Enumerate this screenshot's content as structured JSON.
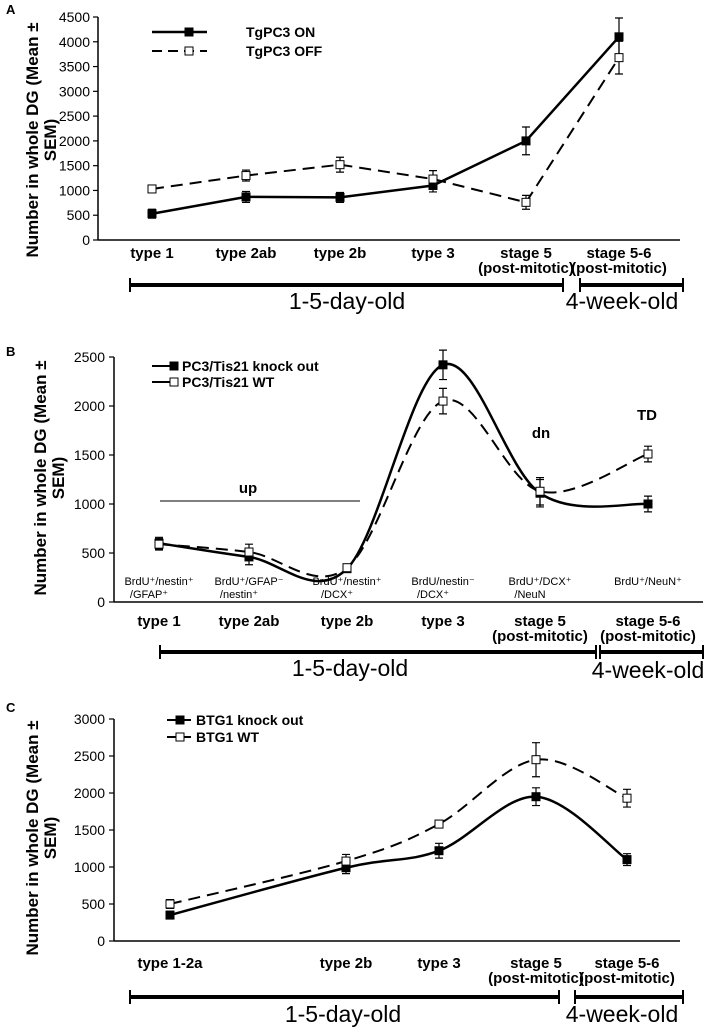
{
  "chart_data": [
    {
      "panel": "A",
      "type": "line",
      "title": "",
      "xlabel": "",
      "ylabel_line1": "Number in whole DG (Mean ±",
      "ylabel_line2": "SEM)",
      "ylim": [
        0,
        4500
      ],
      "yticks": [
        0,
        500,
        1000,
        1500,
        2000,
        2500,
        3000,
        3500,
        4000,
        4500
      ],
      "categories": [
        {
          "line1": "type 1",
          "line2": ""
        },
        {
          "line1": "type 2ab",
          "line2": ""
        },
        {
          "line1": "type 2b",
          "line2": ""
        },
        {
          "line1": "type 3",
          "line2": ""
        },
        {
          "line1": "stage 5",
          "line2": "(post-mitotic)"
        },
        {
          "line1": "stage 5-6",
          "line2": "(post-mitotic)"
        }
      ],
      "series": [
        {
          "name": "TgPC3 ON",
          "style": "solid",
          "marker": "filled",
          "values": [
            530,
            870,
            860,
            1100,
            2000,
            4100
          ],
          "errors": [
            90,
            110,
            100,
            130,
            280,
            380
          ]
        },
        {
          "name": "TgPC3 OFF",
          "style": "dashed",
          "marker": "open",
          "values": [
            1030,
            1300,
            1520,
            1230,
            760,
            3680
          ],
          "errors": [
            70,
            110,
            150,
            170,
            140,
            330
          ]
        }
      ],
      "legend": "top-left",
      "ages": [
        {
          "label": "1-5-day-old"
        },
        {
          "label": "4-week-old"
        }
      ],
      "annotations": []
    },
    {
      "panel": "B",
      "type": "line",
      "title": "",
      "xlabel": "",
      "ylabel_line1": "Number in whole DG (Mean ±",
      "ylabel_line2": "SEM)",
      "ylim": [
        0,
        2500
      ],
      "yticks": [
        0,
        500,
        1000,
        1500,
        2000,
        2500
      ],
      "categories": [
        {
          "line1": "type 1",
          "line2": ""
        },
        {
          "line1": "type 2ab",
          "line2": ""
        },
        {
          "line1": "type 2b",
          "line2": ""
        },
        {
          "line1": "type 3",
          "line2": ""
        },
        {
          "line1": "stage 5",
          "line2": "(post-mitotic)"
        },
        {
          "line1": "stage 5-6",
          "line2": "(post-mitotic)"
        }
      ],
      "series": [
        {
          "name": "PC3/Tis21 knock out",
          "style": "solid",
          "marker": "filled",
          "values": [
            600,
            460,
            340,
            2420,
            1110,
            1000
          ],
          "errors": [
            60,
            80,
            30,
            150,
            140,
            80
          ]
        },
        {
          "name": "PC3/Tis21 WT",
          "style": "dashed",
          "marker": "open",
          "values": [
            590,
            510,
            350,
            2050,
            1130,
            1510
          ],
          "errors": [
            60,
            80,
            30,
            130,
            140,
            80
          ]
        }
      ],
      "legend": "top-left",
      "ages": [
        {
          "label": "1-5-day-old"
        },
        {
          "label": "4-week-old"
        }
      ],
      "markers": [
        {
          "line1": "BrdU⁺/nestin⁺",
          "line2": "/GFAP⁺"
        },
        {
          "line1": "BrdU⁺/GFAP⁻",
          "line2": "/nestin⁺"
        },
        {
          "line1": "BrdU⁺/nestin⁺",
          "line2": "/DCX⁺"
        },
        {
          "line1": "BrdU/nestin⁻",
          "line2": "/DCX⁺"
        },
        {
          "line1": "BrdU⁺/DCX⁺",
          "line2": "/NeuN"
        },
        {
          "line1": "BrdU⁺/NeuN⁺",
          "line2": ""
        }
      ],
      "annotations": [
        {
          "text": "up",
          "at": "type 1 to type 2b"
        },
        {
          "text": "dn",
          "at": "stage 5"
        },
        {
          "text": "TD",
          "at": "stage 5-6"
        }
      ]
    },
    {
      "panel": "C",
      "type": "line",
      "title": "",
      "xlabel": "",
      "ylabel_line1": "Number in whole DG (Mean ±",
      "ylabel_line2": "SEM)",
      "ylim": [
        0,
        3000
      ],
      "yticks": [
        0,
        500,
        1000,
        1500,
        2000,
        2500,
        3000
      ],
      "categories": [
        {
          "line1": "type 1-2a",
          "line2": ""
        },
        {
          "line1": "type 2b",
          "line2": ""
        },
        {
          "line1": "type 3",
          "line2": ""
        },
        {
          "line1": "stage 5",
          "line2": "(post-mitotic)"
        },
        {
          "line1": "stage 5-6",
          "line2": "(post-mitotic)"
        }
      ],
      "series": [
        {
          "name": "BTG1 knock out",
          "style": "solid",
          "marker": "filled",
          "values": [
            350,
            990,
            1220,
            1950,
            1100
          ],
          "errors": [
            50,
            80,
            100,
            120,
            80
          ]
        },
        {
          "name": "BTG1 WT",
          "style": "dashed",
          "marker": "open",
          "values": [
            500,
            1080,
            1580,
            2450,
            1930
          ],
          "errors": [
            60,
            90,
            50,
            230,
            120
          ]
        }
      ],
      "legend": "top-left",
      "ages": [
        {
          "label": "1-5-day-old"
        },
        {
          "label": "4-week-old"
        }
      ],
      "annotations": []
    }
  ]
}
